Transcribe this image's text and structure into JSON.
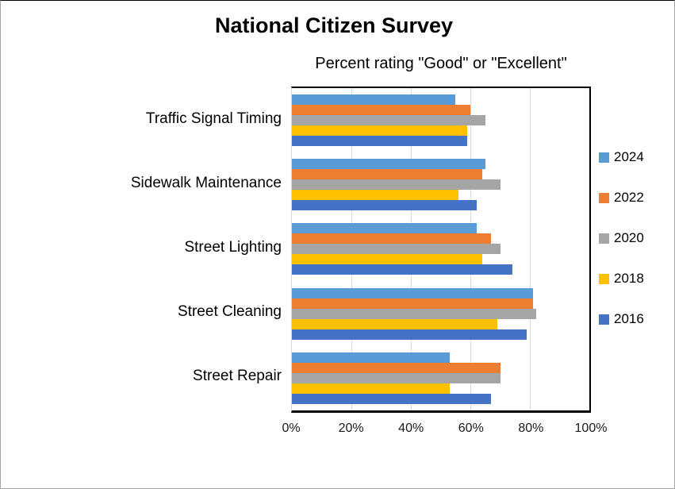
{
  "title": "National Citizen Survey",
  "subtitle": "Percent rating \"Good\" or \"Excellent\"",
  "colors": {
    "gridline": "#d9d9d9",
    "axis": "#000000",
    "frame_border": "#a6a6a6"
  },
  "chart_data": {
    "type": "bar",
    "orientation": "horizontal",
    "title": "National Citizen Survey",
    "subtitle": "Percent rating \"Good\" or \"Excellent\"",
    "categories": [
      "Traffic Signal Timing",
      "Sidewalk Maintenance",
      "Street Lighting",
      "Street Cleaning",
      "Street Repair"
    ],
    "categories_order_note": "listed top to bottom as displayed",
    "series": [
      {
        "name": "2024",
        "color": "#5B9BD5",
        "values": [
          55,
          65,
          62,
          81,
          53
        ]
      },
      {
        "name": "2022",
        "color": "#ED7D31",
        "values": [
          60,
          64,
          67,
          81,
          70
        ]
      },
      {
        "name": "2020",
        "color": "#A5A5A5",
        "values": [
          65,
          70,
          70,
          82,
          70
        ]
      },
      {
        "name": "2018",
        "color": "#FFC000",
        "values": [
          59,
          56,
          64,
          69,
          53
        ]
      },
      {
        "name": "2016",
        "color": "#4472C4",
        "values": [
          59,
          62,
          74,
          79,
          67
        ]
      }
    ],
    "x_axis": {
      "min": 0,
      "max": 100,
      "ticks": [
        "0%",
        "20%",
        "40%",
        "60%",
        "80%",
        "100%"
      ]
    },
    "gridlines": true,
    "legend_position": "right"
  }
}
